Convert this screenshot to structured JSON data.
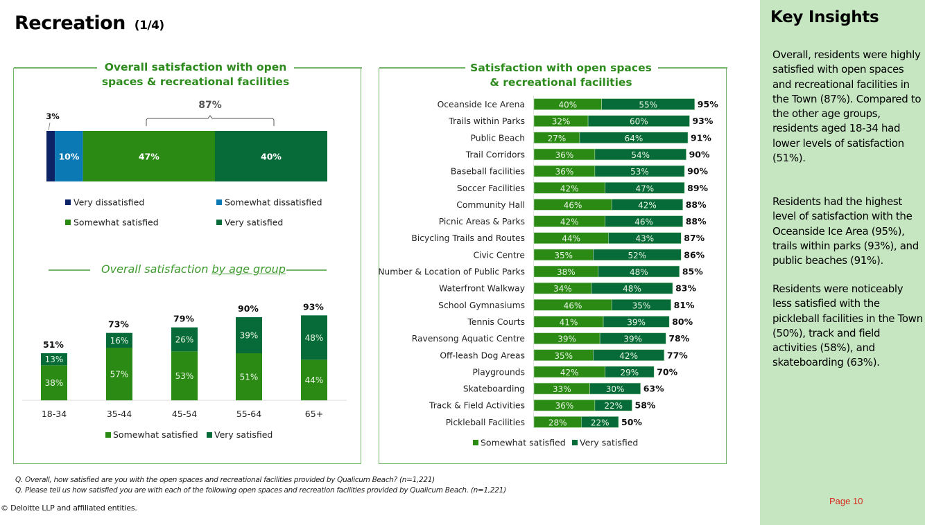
{
  "page": {
    "title": "Recreation",
    "title_suffix": "(1/4)",
    "page_label": "Page 10",
    "copyright": "© Deloitte LLP and affiliated entities.",
    "footnotes": [
      "Q. Overall, how satisfied are you with the open spaces and recreational facilities provided by Qualicum Beach? (n=1,221)",
      "Q. Please tell us how satisfied you are with each of the following open spaces and recreation facilities provided by Qualicum Beach. (n=1,221)"
    ]
  },
  "colors": {
    "very_dissatisfied": "#0c2465",
    "somewhat_dissatisfied": "#0b7ab4",
    "somewhat_satisfied": "#2a8a14",
    "very_satisfied": "#066b38",
    "panel_border": "#74b36a",
    "title_green": "#2e8b1e",
    "insights_bg": "#c5e6c1"
  },
  "insights": {
    "heading": "Key Insights",
    "paragraphs": [
      "Overall, residents were highly satisfied with open spaces and recreational facilities in the Town (87%). Compared to the other age groups, residents aged 18-34 had lower levels of satisfaction (51%).",
      "Residents had the highest level of satisfaction with the Oceanside Ice Area (95%), trails within parks (93%), and public beaches (91%).",
      "Residents were noticeably less satisfied with the pickleball facilities in the Town (50%), track and field activities (58%), and skateboarding (63%)."
    ]
  },
  "chart_data": [
    {
      "id": "overall",
      "type": "bar",
      "orientation": "horizontal-stacked-100",
      "title": "Overall satisfaction with open spaces & recreational facilities",
      "title_lines": [
        "Overall satisfaction with open",
        "spaces & recreational facilities"
      ],
      "series": [
        {
          "name": "Very dissatisfied",
          "value": 3,
          "color_key": "very_dissatisfied",
          "label": "3%"
        },
        {
          "name": "Somewhat dissatisfied",
          "value": 10,
          "color_key": "somewhat_dissatisfied",
          "label": "10%"
        },
        {
          "name": "Somewhat satisfied",
          "value": 47,
          "color_key": "somewhat_satisfied",
          "label": "47%"
        },
        {
          "name": "Very satisfied",
          "value": 40,
          "color_key": "very_satisfied",
          "label": "40%"
        }
      ],
      "annotation": {
        "label": "87%",
        "spans": [
          "Somewhat satisfied",
          "Very satisfied"
        ]
      },
      "legend": [
        "Very dissatisfied",
        "Somewhat dissatisfied",
        "Somewhat satisfied",
        "Very satisfied"
      ],
      "legend_placement": "bottom"
    },
    {
      "id": "age",
      "type": "bar",
      "orientation": "vertical-stacked",
      "title": "Overall satisfaction by age group",
      "title_plain": "Overall satisfaction ",
      "title_underlined": "by age group",
      "categories": [
        "18-34",
        "35-44",
        "45-54",
        "55-64",
        "65+"
      ],
      "series": [
        {
          "name": "Somewhat satisfied",
          "values": [
            38,
            57,
            53,
            51,
            44
          ],
          "color_key": "somewhat_satisfied"
        },
        {
          "name": "Very satisfied",
          "values": [
            13,
            16,
            26,
            39,
            48
          ],
          "color_key": "very_satisfied"
        }
      ],
      "totals": [
        51,
        73,
        79,
        90,
        93
      ],
      "ylim": [
        0,
        100
      ],
      "legend": [
        "Somewhat satisfied",
        "Very satisfied"
      ],
      "legend_placement": "bottom"
    },
    {
      "id": "facilities",
      "type": "bar",
      "orientation": "horizontal-stacked",
      "title": "Satisfaction with open spaces & recreational facilities",
      "title_lines": [
        "Satisfaction with open spaces",
        "& recreational facilities"
      ],
      "categories": [
        "Oceanside Ice Arena",
        "Trails within Parks",
        "Public Beach",
        "Trail Corridors",
        "Baseball facilities",
        "Soccer Facilities",
        "Community Hall",
        "Picnic Areas & Parks",
        "Bicycling Trails and Routes",
        "Civic Centre",
        "Number & Location of Public Parks",
        "Waterfront Walkway",
        "School Gymnasiums",
        "Tennis Courts",
        "Ravensong Aquatic Centre",
        "Off-leash Dog Areas",
        "Playgrounds",
        "Skateboarding",
        "Track & Field Activities",
        "Pickleball Facilities"
      ],
      "series": [
        {
          "name": "Somewhat satisfied",
          "values": [
            40,
            32,
            27,
            36,
            36,
            42,
            46,
            42,
            44,
            35,
            38,
            34,
            46,
            41,
            39,
            35,
            42,
            33,
            36,
            28
          ],
          "color_key": "somewhat_satisfied"
        },
        {
          "name": "Very satisfied",
          "values": [
            55,
            60,
            64,
            54,
            53,
            47,
            42,
            46,
            43,
            52,
            48,
            48,
            35,
            39,
            39,
            42,
            29,
            30,
            22,
            22
          ],
          "color_key": "very_satisfied"
        }
      ],
      "totals": [
        95,
        93,
        91,
        90,
        90,
        89,
        88,
        88,
        87,
        86,
        85,
        83,
        81,
        80,
        78,
        77,
        70,
        63,
        58,
        50
      ],
      "xlim": [
        0,
        100
      ],
      "legend": [
        "Somewhat satisfied",
        "Very satisfied"
      ],
      "legend_placement": "bottom"
    }
  ]
}
